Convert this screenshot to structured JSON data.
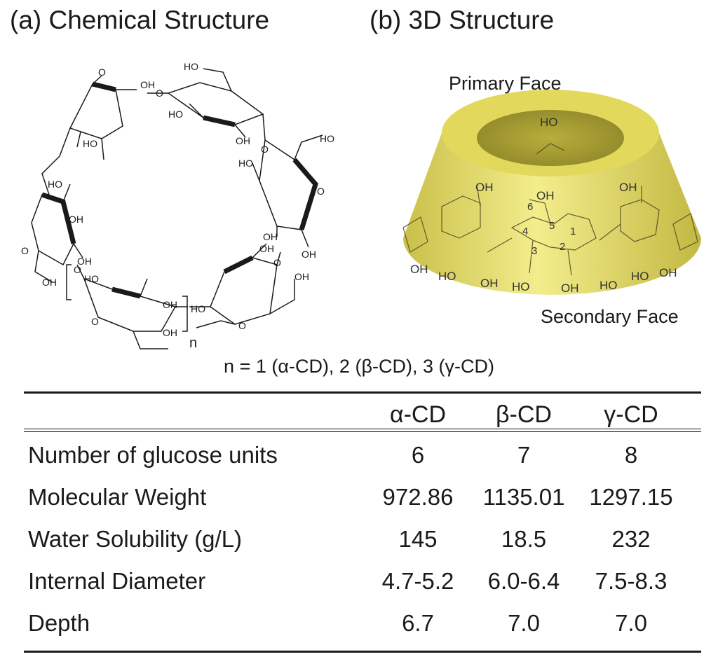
{
  "panels": {
    "a_title": "(a) Chemical Structure",
    "b_title": "(b) 3D Structure"
  },
  "structure": {
    "oh_labels": [
      "OH",
      "OH",
      "OH",
      "OH",
      "OH",
      "OH",
      "OH",
      "OH",
      "OH",
      "OH",
      "OH",
      "OH",
      "OH"
    ],
    "ho_labels": [
      "HO",
      "HO",
      "HO",
      "HO",
      "HO",
      "HO",
      "HO",
      "HO"
    ],
    "o_label": "O",
    "repeat_subscript": "n"
  },
  "cone": {
    "primary_face": "Primary Face",
    "secondary_face": "Secondary Face",
    "carbon_numbers": [
      "1",
      "2",
      "3",
      "4",
      "5",
      "6"
    ],
    "oh": "OH",
    "ho": "HO",
    "body_color": "#e8e06a"
  },
  "note": "n = 1 (α-CD), 2 (β-CD), 3 (γ-CD)",
  "table": {
    "headers": [
      "α-CD",
      "β-CD",
      "γ-CD"
    ],
    "rows": [
      {
        "label": "Number of glucose units",
        "values": [
          "6",
          "7",
          "8"
        ]
      },
      {
        "label": "Molecular Weight",
        "values": [
          "972.86",
          "1135.01",
          "1297.15"
        ]
      },
      {
        "label": "Water Solubility (g/L)",
        "values": [
          "145",
          "18.5",
          "232"
        ]
      },
      {
        "label": "Internal Diameter",
        "values": [
          "4.7-5.2",
          "6.0-6.4",
          "7.5-8.3"
        ]
      },
      {
        "label": "Depth",
        "values": [
          "6.7",
          "7.0",
          "7.0"
        ]
      }
    ]
  }
}
